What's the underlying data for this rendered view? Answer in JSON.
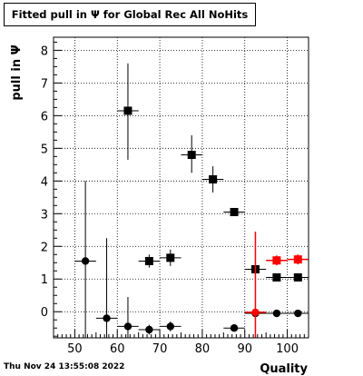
{
  "chart_data": {
    "type": "scatter",
    "title": "Fitted pull in  Ψ  for Global Rec All NoHits",
    "xlabel": "Quality",
    "ylabel": "pull in  Ψ",
    "xlim": [
      45,
      105
    ],
    "ylim": [
      -0.8,
      8.4
    ],
    "xticks": [
      50,
      60,
      70,
      80,
      90,
      100
    ],
    "yticks": [
      0,
      1,
      2,
      3,
      4,
      5,
      6,
      7,
      8
    ],
    "grid": true,
    "series": [
      {
        "marker": "square",
        "color": "#000000",
        "points": [
          {
            "x": 62.5,
            "y": 6.15,
            "ylo": 4.65,
            "yhi": 7.6
          },
          {
            "x": 67.5,
            "y": 1.55,
            "ylo": 1.35,
            "yhi": 1.75
          },
          {
            "x": 72.5,
            "y": 1.65,
            "ylo": 1.4,
            "yhi": 1.9
          },
          {
            "x": 77.5,
            "y": 4.8,
            "ylo": 4.25,
            "yhi": 5.4
          },
          {
            "x": 82.5,
            "y": 4.05,
            "ylo": 3.65,
            "yhi": 4.45
          },
          {
            "x": 87.5,
            "y": 3.05,
            "ylo": 2.95,
            "yhi": 3.15
          },
          {
            "x": 92.5,
            "y": 1.3,
            "ylo": 1.0,
            "yhi": 1.6
          },
          {
            "x": 97.5,
            "y": 1.05,
            "ylo": 1.0,
            "yhi": 1.1
          },
          {
            "x": 102.5,
            "y": 1.05,
            "ylo": 1.0,
            "yhi": 1.1
          }
        ]
      },
      {
        "marker": "circle",
        "color": "#000000",
        "points": [
          {
            "x": 52.5,
            "y": 1.55,
            "ylo": -0.8,
            "yhi": 4.0
          },
          {
            "x": 57.5,
            "y": -0.2,
            "ylo": -0.8,
            "yhi": 2.25
          },
          {
            "x": 62.5,
            "y": -0.45,
            "ylo": -0.8,
            "yhi": 0.45
          },
          {
            "x": 67.5,
            "y": -0.55,
            "ylo": -0.7,
            "yhi": -0.4
          },
          {
            "x": 72.5,
            "y": -0.45,
            "ylo": -0.6,
            "yhi": -0.3
          },
          {
            "x": 87.5,
            "y": -0.5,
            "ylo": -0.6,
            "yhi": -0.4
          },
          {
            "x": 92.5,
            "y": -0.05,
            "ylo": -0.3,
            "yhi": 0.2
          },
          {
            "x": 97.5,
            "y": -0.05,
            "ylo": -0.1,
            "yhi": 0.0
          },
          {
            "x": 102.5,
            "y": -0.05,
            "ylo": -0.1,
            "yhi": 0.0
          }
        ]
      },
      {
        "marker": "square",
        "color": "#ff0000",
        "points": [
          {
            "x": 97.5,
            "y": 1.57,
            "ylo": 1.42,
            "yhi": 1.72
          },
          {
            "x": 102.5,
            "y": 1.6,
            "ylo": 1.45,
            "yhi": 1.75
          }
        ]
      },
      {
        "marker": "circle",
        "color": "#ff0000",
        "points": [
          {
            "x": 92.5,
            "y": -0.02,
            "ylo": -0.8,
            "yhi": 2.45
          }
        ]
      }
    ]
  },
  "footer": {
    "timestamp": "Thu Nov 24 13:55:08 2022"
  }
}
